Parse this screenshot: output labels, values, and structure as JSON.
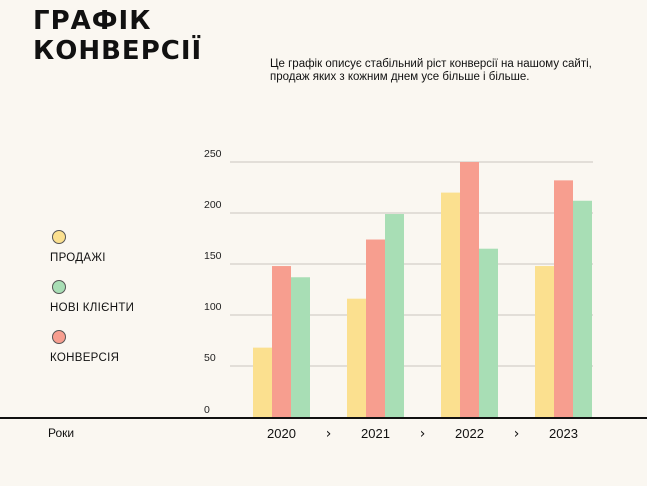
{
  "header": {
    "title_lines": [
      "ГРАФІК",
      "КОНВЕРСІЇ"
    ],
    "description_lines": [
      "Це графік описує стабільний ріст конверсії на нашому сайті,",
      "продаж яких з кожним днем усе більше і більше."
    ]
  },
  "legend": {
    "items": [
      {
        "label": "ПРОДАЖІ",
        "color": "#fbe08f"
      },
      {
        "label": "НОВІ КЛІЄНТИ",
        "color": "#a8deb5"
      },
      {
        "label": "КОНВЕРСІЯ",
        "color": "#f79e8f"
      }
    ]
  },
  "chart_data": {
    "type": "bar",
    "categories": [
      "2020",
      "2021",
      "2022",
      "2023"
    ],
    "series": [
      {
        "name": "ПРОДАЖІ",
        "color": "#fbe08f",
        "values": [
          68,
          116,
          220,
          148
        ]
      },
      {
        "name": "КОНВЕРСІЯ",
        "color": "#f79e8f",
        "values": [
          148,
          174,
          250,
          232
        ]
      },
      {
        "name": "НОВІ КЛІЄНТИ",
        "color": "#a8deb5",
        "values": [
          137,
          199,
          165,
          212
        ]
      }
    ],
    "y_ticks": [
      "0",
      "50",
      "100",
      "150",
      "200",
      "250"
    ],
    "ylim": [
      0,
      250
    ],
    "xlabel": "Роки",
    "category_separator": "›",
    "grid": true
  }
}
